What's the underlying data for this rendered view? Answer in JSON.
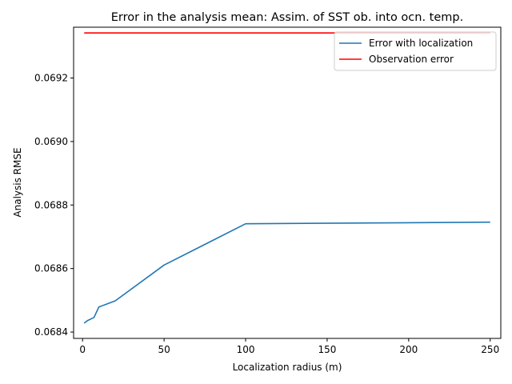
{
  "chart_data": {
    "type": "line",
    "title": "Error in the analysis mean: Assim. of SST ob. into ocn. temp.",
    "xlabel": "Localization radius (m)",
    "ylabel": "Analysis RMSE",
    "xlim": [
      -5.5,
      256.5
    ],
    "ylim": [
      0.06838,
      0.06936
    ],
    "xticks": [
      0,
      50,
      100,
      150,
      200,
      250
    ],
    "yticks": [
      0.0684,
      0.0686,
      0.0688,
      0.069,
      0.0692
    ],
    "xtick_labels": [
      "0",
      "50",
      "100",
      "150",
      "200",
      "250"
    ],
    "ytick_labels": [
      "0.0684",
      "0.0686",
      "0.0688",
      "0.0690",
      "0.0692"
    ],
    "grid": false,
    "legend": "upper right",
    "series": [
      {
        "name": "Error with localization",
        "color": "#1f77b4",
        "x": [
          1,
          3,
          5,
          7,
          10,
          20,
          50,
          100,
          250
        ],
        "y": [
          0.068428,
          0.068436,
          0.068441,
          0.068446,
          0.068479,
          0.068498,
          0.068611,
          0.068741,
          0.068746
        ]
      },
      {
        "name": "Observation error",
        "color": "#ff0000",
        "x": [
          1,
          250
        ],
        "y": [
          0.069342,
          0.069342
        ]
      }
    ]
  }
}
